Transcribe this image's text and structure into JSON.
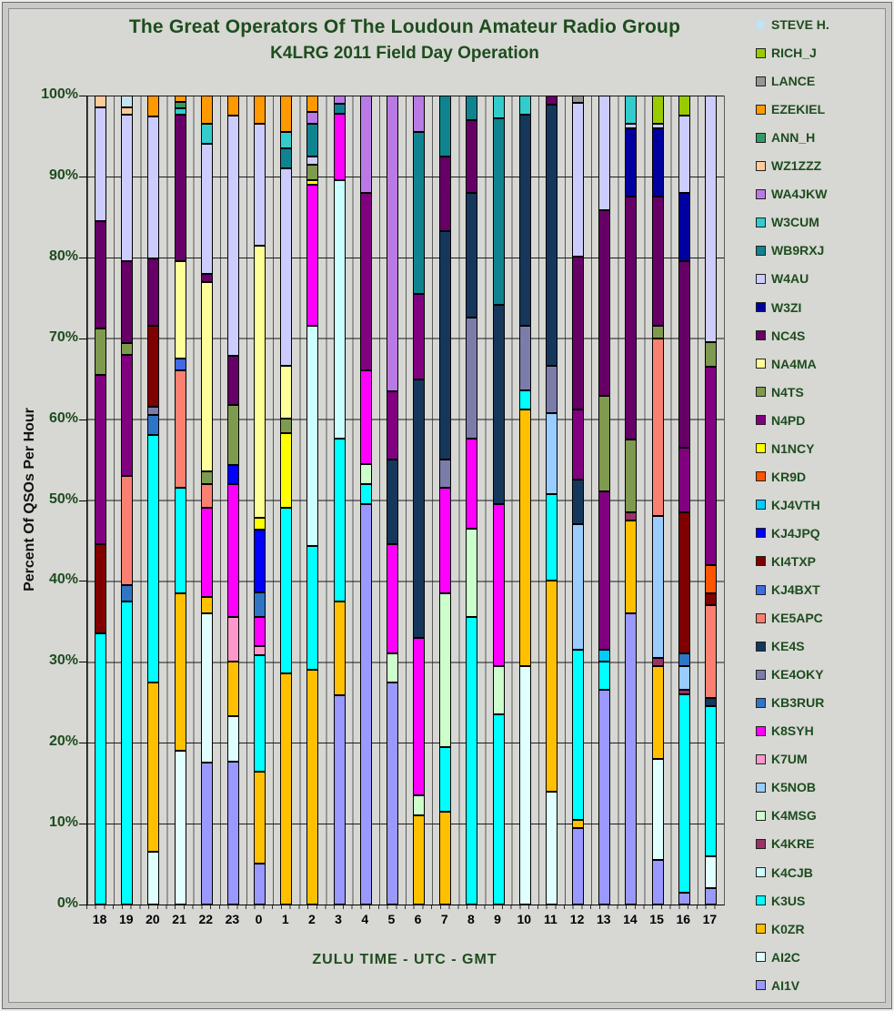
{
  "title": {
    "line1": "The Great Operators Of The Loudoun Amateur Radio Group",
    "line2": "K4LRG 2011 Field Day Operation"
  },
  "y_axis": {
    "title": "Percent Of QSOs Per Hour",
    "tick_labels": [
      "100%",
      "90%",
      "80%",
      "70%",
      "60%",
      "50%",
      "40%",
      "30%",
      "20%",
      "10%",
      "0%"
    ]
  },
  "x_axis": {
    "title": "ZULU TIME  -  UTC  -  GMT",
    "categories": [
      "18",
      "19",
      "20",
      "21",
      "22",
      "23",
      "0",
      "1",
      "2",
      "3",
      "4",
      "5",
      "6",
      "7",
      "8",
      "9",
      "10",
      "11",
      "12",
      "13",
      "14",
      "15",
      "16",
      "17"
    ]
  },
  "chart_data": {
    "type": "bar",
    "stacking": "percent",
    "title": "The Great Operators Of The Loudoun Amateur Radio Group — K4LRG 2011 Field Day Operation",
    "xlabel": "ZULU TIME - UTC - GMT",
    "ylabel": "Percent Of QSOs Per Hour",
    "ylim": [
      0,
      100
    ],
    "grid": true,
    "legend_position": "right",
    "categories": [
      "18",
      "19",
      "20",
      "21",
      "22",
      "23",
      "0",
      "1",
      "2",
      "3",
      "4",
      "5",
      "6",
      "7",
      "8",
      "9",
      "10",
      "11",
      "12",
      "13",
      "14",
      "15",
      "16",
      "17"
    ],
    "legend_top_to_bottom": [
      "STEVE H.",
      "RICH_J",
      "LANCE",
      "EZEKIEL",
      "ANN_H",
      "WZ1ZZZ",
      "WA4JKW",
      "W3CUM",
      "WB9RXJ",
      "W4AU",
      "W3ZI",
      "NC4S",
      "NA4MA",
      "N4TS",
      "N4PD",
      "N1NCY",
      "KR9D",
      "KJ4VTH",
      "KJ4JPQ",
      "KI4TXP",
      "KJ4BXT",
      "KE5APC",
      "KE4S",
      "KE4OKY",
      "KB3RUR",
      "K8SYH",
      "K7UM",
      "K5NOB",
      "K4MSG",
      "K4KRE",
      "K4CJB",
      "K3US",
      "K0ZR",
      "AI2C",
      "AI1V"
    ],
    "series_colors": {
      "STEVE H.": "#C6E2EE",
      "RICH_J": "#99CC00",
      "LANCE": "#969696",
      "EZEKIEL": "#FF9900",
      "ANN_H": "#339966",
      "WZ1ZZZ": "#FFCC99",
      "WA4JKW": "#BA7AE6",
      "W3CUM": "#33CCCC",
      "WB9RXJ": "#0F8490",
      "W4AU": "#CCCCFF",
      "W3ZI": "#0000A0",
      "NC4S": "#660066",
      "NA4MA": "#FFFF99",
      "N4TS": "#7E9A4E",
      "N4PD": "#800080",
      "N1NCY": "#FFFF00",
      "KR9D": "#FF5500",
      "KJ4VTH": "#00CCFF",
      "KJ4JPQ": "#0000FF",
      "KI4TXP": "#800000",
      "KJ4BXT": "#4169E1",
      "KE5APC": "#FA8072",
      "KE4S": "#16375C",
      "KE4OKY": "#7C7CAB",
      "KB3RUR": "#2E75C6",
      "K8SYH": "#FF00FF",
      "K7UM": "#FF99CC",
      "K5NOB": "#99CCFF",
      "K4MSG": "#CCFFCC",
      "K4KRE": "#993366",
      "K4CJB": "#CCFFFF",
      "K3US": "#00FFFF",
      "K0ZR": "#FFC000",
      "AI2C": "#E0FFFF",
      "AI1V": "#9999FF"
    },
    "swatch_borders": {
      "STEVE H.": "#BFDCE8"
    },
    "bars": [
      {
        "category": "18",
        "segments": [
          [
            "K3US",
            33.5
          ],
          [
            "KI4TXP",
            11
          ],
          [
            "N4PD",
            21
          ],
          [
            "N4TS",
            5.7
          ],
          [
            "NC4S",
            13.3
          ],
          [
            "W4AU",
            14
          ],
          [
            "WZ1ZZZ",
            1.5
          ]
        ]
      },
      {
        "category": "19",
        "segments": [
          [
            "K3US",
            37.5
          ],
          [
            "KB3RUR",
            2
          ],
          [
            "KE5APC",
            13.5
          ],
          [
            "N4PD",
            15
          ],
          [
            "N4TS",
            1.4
          ],
          [
            "NC4S",
            10.1
          ],
          [
            "W4AU",
            18.2
          ],
          [
            "WZ1ZZZ",
            0.9
          ],
          [
            "STEVE H.",
            1.4
          ]
        ]
      },
      {
        "category": "20",
        "segments": [
          [
            "AI2C",
            6.5
          ],
          [
            "K0ZR",
            21
          ],
          [
            "K3US",
            30.5
          ],
          [
            "KB3RUR",
            2.5
          ],
          [
            "KE4OKY",
            1
          ],
          [
            "KI4TXP",
            10
          ],
          [
            "NC4S",
            8.4
          ],
          [
            "W4AU",
            17.5
          ],
          [
            "EZEKIEL",
            2.6
          ]
        ]
      },
      {
        "category": "21",
        "segments": [
          [
            "AI2C",
            19
          ],
          [
            "K0ZR",
            19.5
          ],
          [
            "K3US",
            13
          ],
          [
            "KE5APC",
            14.5
          ],
          [
            "KJ4BXT",
            1.5
          ],
          [
            "NA4MA",
            12
          ],
          [
            "NC4S",
            18.2
          ],
          [
            "W3CUM",
            0.7
          ],
          [
            "ANN_H",
            0.8
          ],
          [
            "EZEKIEL",
            0.8
          ]
        ]
      },
      {
        "category": "22",
        "segments": [
          [
            "AI1V",
            17.5
          ],
          [
            "AI2C",
            18.5
          ],
          [
            "K0ZR",
            2
          ],
          [
            "K8SYH",
            11
          ],
          [
            "KE5APC",
            3
          ],
          [
            "N4TS",
            1.5
          ],
          [
            "NA4MA",
            23.5
          ],
          [
            "NC4S",
            1
          ],
          [
            "W4AU",
            16
          ],
          [
            "W3CUM",
            2.5
          ],
          [
            "EZEKIEL",
            3.5
          ]
        ]
      },
      {
        "category": "23",
        "segments": [
          [
            "AI1V",
            17.7
          ],
          [
            "AI2C",
            5.6
          ],
          [
            "K0ZR",
            6.7
          ],
          [
            "K7UM",
            5.5
          ],
          [
            "K8SYH",
            16.5
          ],
          [
            "KJ4JPQ",
            2.3
          ],
          [
            "N4TS",
            7.5
          ],
          [
            "NC4S",
            6
          ],
          [
            "W4AU",
            29.7
          ],
          [
            "EZEKIEL",
            2.5
          ]
        ]
      },
      {
        "category": "0",
        "segments": [
          [
            "AI1V",
            5.1
          ],
          [
            "K0ZR",
            11.3
          ],
          [
            "K3US",
            14.4
          ],
          [
            "K7UM",
            1.1
          ],
          [
            "K8SYH",
            3.7
          ],
          [
            "KB3RUR",
            3
          ],
          [
            "KJ4JPQ",
            7.7
          ],
          [
            "N1NCY",
            1.5
          ],
          [
            "NA4MA",
            33.7
          ],
          [
            "W4AU",
            15
          ],
          [
            "EZEKIEL",
            3.5
          ]
        ]
      },
      {
        "category": "1",
        "segments": [
          [
            "K0ZR",
            28.6
          ],
          [
            "K3US",
            20.5
          ],
          [
            "N1NCY",
            9.2
          ],
          [
            "N4TS",
            1.8
          ],
          [
            "NA4MA",
            6.5
          ],
          [
            "W4AU",
            24.4
          ],
          [
            "WB9RXJ",
            2.5
          ],
          [
            "W3CUM",
            2
          ],
          [
            "EZEKIEL",
            4.5
          ]
        ]
      },
      {
        "category": "2",
        "segments": [
          [
            "K0ZR",
            29
          ],
          [
            "K3US",
            15.3
          ],
          [
            "K4CJB",
            27.2
          ],
          [
            "K8SYH",
            17.5
          ],
          [
            "N1NCY",
            0.5
          ],
          [
            "N4TS",
            2
          ],
          [
            "W4AU",
            1
          ],
          [
            "WB9RXJ",
            4
          ],
          [
            "WA4JKW",
            1.5
          ],
          [
            "EZEKIEL",
            2
          ]
        ]
      },
      {
        "category": "3",
        "segments": [
          [
            "AI1V",
            25.9
          ],
          [
            "K0ZR",
            11.6
          ],
          [
            "K3US",
            20.1
          ],
          [
            "K4CJB",
            31.9
          ],
          [
            "K8SYH",
            8.3
          ],
          [
            "WB9RXJ",
            1.2
          ],
          [
            "WA4JKW",
            1
          ]
        ]
      },
      {
        "category": "4",
        "segments": [
          [
            "AI1V",
            49.5
          ],
          [
            "K3US",
            2.5
          ],
          [
            "K4MSG",
            2.5
          ],
          [
            "K8SYH",
            11.5
          ],
          [
            "N4PD",
            22
          ],
          [
            "WA4JKW",
            12
          ]
        ]
      },
      {
        "category": "5",
        "segments": [
          [
            "AI1V",
            27.5
          ],
          [
            "K4MSG",
            3.5
          ],
          [
            "K8SYH",
            13.5
          ],
          [
            "KE4S",
            10.5
          ],
          [
            "N4PD",
            8.5
          ],
          [
            "WA4JKW",
            36.5
          ]
        ]
      },
      {
        "category": "6",
        "segments": [
          [
            "K0ZR",
            11
          ],
          [
            "K4MSG",
            2.5
          ],
          [
            "K8SYH",
            19.5
          ],
          [
            "KE4S",
            31.9
          ],
          [
            "N4PD",
            10.6
          ],
          [
            "WB9RXJ",
            20
          ],
          [
            "WA4JKW",
            4.5
          ]
        ]
      },
      {
        "category": "7",
        "segments": [
          [
            "K0ZR",
            11.5
          ],
          [
            "K3US",
            8
          ],
          [
            "K4MSG",
            19
          ],
          [
            "K8SYH",
            13
          ],
          [
            "KE4OKY",
            3.5
          ],
          [
            "KE4S",
            28.2
          ],
          [
            "NC4S",
            9.3
          ],
          [
            "WB9RXJ",
            7.5
          ]
        ]
      },
      {
        "category": "8",
        "segments": [
          [
            "K3US",
            35.5
          ],
          [
            "K4MSG",
            11
          ],
          [
            "K8SYH",
            11.1
          ],
          [
            "KE4OKY",
            15
          ],
          [
            "KE4S",
            15.4
          ],
          [
            "NC4S",
            9
          ],
          [
            "WB9RXJ",
            3
          ]
        ]
      },
      {
        "category": "9",
        "segments": [
          [
            "K3US",
            23.5
          ],
          [
            "K4MSG",
            6
          ],
          [
            "K8SYH",
            20
          ],
          [
            "KE4S",
            24.6
          ],
          [
            "WB9RXJ",
            23.1
          ],
          [
            "W3CUM",
            2.8
          ]
        ]
      },
      {
        "category": "10",
        "segments": [
          [
            "AI2C",
            29.5
          ],
          [
            "K0ZR",
            31.7
          ],
          [
            "K3US",
            2.4
          ],
          [
            "KE4OKY",
            7.9
          ],
          [
            "KE4S",
            26.1
          ],
          [
            "W3CUM",
            2.4
          ]
        ]
      },
      {
        "category": "11",
        "segments": [
          [
            "AI2C",
            14
          ],
          [
            "K0ZR",
            26
          ],
          [
            "K3US",
            10.7
          ],
          [
            "K5NOB",
            10.1
          ],
          [
            "KE4OKY",
            5.8
          ],
          [
            "KE4S",
            32.3
          ],
          [
            "NC4S",
            1.1
          ]
        ]
      },
      {
        "category": "12",
        "segments": [
          [
            "AI1V",
            9.5
          ],
          [
            "K0ZR",
            1
          ],
          [
            "K3US",
            21
          ],
          [
            "K5NOB",
            15.5
          ],
          [
            "KE4S",
            5.5
          ],
          [
            "N4PD",
            8.7
          ],
          [
            "NC4S",
            18.9
          ],
          [
            "W4AU",
            19
          ],
          [
            "LANCE",
            0.9
          ]
        ]
      },
      {
        "category": "13",
        "segments": [
          [
            "AI1V",
            26.5
          ],
          [
            "K3US",
            3.5
          ],
          [
            "KJ4VTH",
            1.5
          ],
          [
            "N4PD",
            19.6
          ],
          [
            "N4TS",
            11.8
          ],
          [
            "NC4S",
            22.9
          ],
          [
            "W4AU",
            14.2
          ]
        ]
      },
      {
        "category": "14",
        "segments": [
          [
            "AI1V",
            36
          ],
          [
            "K0ZR",
            11.5
          ],
          [
            "K4KRE",
            1
          ],
          [
            "N4TS",
            9
          ],
          [
            "NC4S",
            30
          ],
          [
            "W3ZI",
            8.5
          ],
          [
            "W4AU",
            0.5
          ],
          [
            "W3CUM",
            3.5
          ]
        ]
      },
      {
        "category": "15",
        "segments": [
          [
            "AI1V",
            5.5
          ],
          [
            "AI2C",
            12.5
          ],
          [
            "K0ZR",
            11.5
          ],
          [
            "K4KRE",
            1
          ],
          [
            "K5NOB",
            17.5
          ],
          [
            "KE5APC",
            22
          ],
          [
            "N4TS",
            1.5
          ],
          [
            "NC4S",
            16
          ],
          [
            "W3ZI",
            8.5
          ],
          [
            "W4AU",
            0.5
          ],
          [
            "RICH_J",
            3.5
          ]
        ]
      },
      {
        "category": "16",
        "segments": [
          [
            "AI1V",
            1.5
          ],
          [
            "K3US",
            24.5
          ],
          [
            "K4KRE",
            0.5
          ],
          [
            "K5NOB",
            3
          ],
          [
            "KB3RUR",
            1.5
          ],
          [
            "KI4TXP",
            17.5
          ],
          [
            "N4PD",
            8
          ],
          [
            "NC4S",
            23
          ],
          [
            "W3ZI",
            8.5
          ],
          [
            "W4AU",
            9.5
          ],
          [
            "RICH_J",
            2.5
          ]
        ]
      },
      {
        "category": "17",
        "segments": [
          [
            "AI1V",
            2
          ],
          [
            "AI2C",
            4
          ],
          [
            "K3US",
            18.5
          ],
          [
            "KE4S",
            1
          ],
          [
            "KE5APC",
            11.5
          ],
          [
            "KI4TXP",
            1.5
          ],
          [
            "KR9D",
            3.5
          ],
          [
            "N4PD",
            24.5
          ],
          [
            "N4TS",
            3
          ],
          [
            "W4AU",
            30.5
          ]
        ]
      }
    ]
  }
}
